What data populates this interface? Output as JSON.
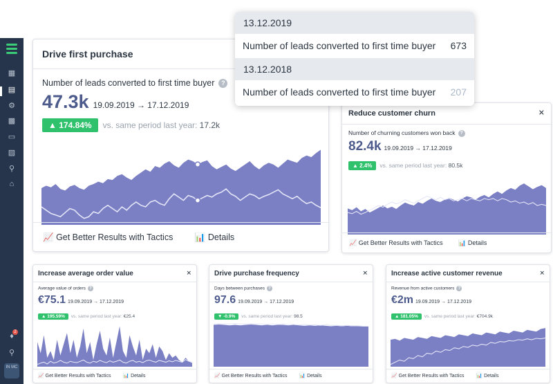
{
  "colors": {
    "accent": "#7b7fc4",
    "positive": "#2fc16b",
    "negative": "#2fc16b",
    "sidebar": "#26354c"
  },
  "sidebar": {
    "icons": [
      "logo-icon",
      "contacts-icon",
      "analytics-icon",
      "settings-icon",
      "campaigns-icon",
      "messages-icon",
      "segments-icon",
      "integrations-icon",
      "automation-icon",
      "bell-icon",
      "search-icon"
    ],
    "notification_count": "2",
    "avatar_initials": "IN MC"
  },
  "tooltip": {
    "rows": [
      {
        "date": "13.12.2019",
        "label": "Number of leads converted to first time buyer",
        "value": "673"
      },
      {
        "date": "13.12.2018",
        "label": "Number of leads converted to first time buyer",
        "value": "207"
      }
    ]
  },
  "footer": {
    "tactics": "Get Better Results with Tactics",
    "details": "Details"
  },
  "cards": {
    "main": {
      "title": "Drive first purchase",
      "metric": "Number of leads converted to first time buyer",
      "value": "47.3k",
      "range": "19.09.2019 → 17.12.2019",
      "pct": "174.84%",
      "cmp_label": "vs. same period last year:",
      "cmp_value": "17.2k",
      "chart": {
        "current": [
          0.45,
          0.48,
          0.46,
          0.5,
          0.44,
          0.42,
          0.47,
          0.49,
          0.45,
          0.43,
          0.48,
          0.5,
          0.53,
          0.51,
          0.56,
          0.55,
          0.6,
          0.62,
          0.58,
          0.55,
          0.6,
          0.64,
          0.68,
          0.65,
          0.72,
          0.7,
          0.75,
          0.78,
          0.73,
          0.7,
          0.76,
          0.8,
          0.78,
          0.74,
          0.77,
          0.79,
          0.72,
          0.68,
          0.71,
          0.74,
          0.69,
          0.66,
          0.7,
          0.74,
          0.78,
          0.72,
          0.68,
          0.73,
          0.76,
          0.74,
          0.7,
          0.75,
          0.8,
          0.78,
          0.76,
          0.82,
          0.85,
          0.83,
          0.88,
          0.92
        ],
        "previous": [
          0.22,
          0.18,
          0.14,
          0.12,
          0.1,
          0.15,
          0.2,
          0.18,
          0.12,
          0.08,
          0.1,
          0.16,
          0.14,
          0.2,
          0.24,
          0.2,
          0.16,
          0.22,
          0.18,
          0.24,
          0.28,
          0.24,
          0.22,
          0.28,
          0.3,
          0.26,
          0.24,
          0.32,
          0.38,
          0.34,
          0.3,
          0.36,
          0.34,
          0.3,
          0.33,
          0.36,
          0.34,
          0.38,
          0.4,
          0.44,
          0.38,
          0.35,
          0.3,
          0.34,
          0.38,
          0.36,
          0.32,
          0.35,
          0.37,
          0.4,
          0.43,
          0.38,
          0.35,
          0.32,
          0.35,
          0.3,
          0.26,
          0.28,
          0.24,
          0.21
        ]
      }
    },
    "churn": {
      "title": "Reduce customer churn",
      "metric": "Number of churning customers won back",
      "value": "82.4k",
      "range": "19.09.2019 → 17.12.2019",
      "pct": "2.4%",
      "cmp_label": "vs. same period last year:",
      "cmp_value": "80.5k",
      "chart": {
        "current": [
          0.45,
          0.42,
          0.47,
          0.4,
          0.44,
          0.38,
          0.42,
          0.46,
          0.5,
          0.45,
          0.48,
          0.44,
          0.5,
          0.55,
          0.52,
          0.5,
          0.56,
          0.53,
          0.58,
          0.62,
          0.58,
          0.56,
          0.6,
          0.63,
          0.6,
          0.57,
          0.62,
          0.66,
          0.64,
          0.6,
          0.65,
          0.68,
          0.64,
          0.7,
          0.74,
          0.7,
          0.76,
          0.8,
          0.77,
          0.84,
          0.88,
          0.83,
          0.78,
          0.82,
          0.85,
          0.8
        ],
        "previous": [
          0.38,
          0.36,
          0.4,
          0.35,
          0.38,
          0.42,
          0.46,
          0.5,
          0.47,
          0.52,
          0.56,
          0.53,
          0.55,
          0.6,
          0.57,
          0.54,
          0.58,
          0.62,
          0.66,
          0.63,
          0.6,
          0.64,
          0.6,
          0.62,
          0.58,
          0.6,
          0.62,
          0.58,
          0.62,
          0.6,
          0.58,
          0.62,
          0.6,
          0.62,
          0.58,
          0.62,
          0.6,
          0.56,
          0.58,
          0.54,
          0.56,
          0.52,
          0.55,
          0.5,
          0.52,
          0.5
        ]
      }
    },
    "aov": {
      "title": "Increase average order value",
      "metric": "Average value of orders",
      "value": "€75.1",
      "range": "19.09.2019 → 17.12.2019",
      "pct": "195.59%",
      "cmp_label": "vs. same period last year:",
      "cmp_value": "€25.4",
      "chart": {
        "current": [
          0.55,
          0.3,
          0.7,
          0.2,
          0.35,
          0.15,
          0.6,
          0.25,
          0.5,
          0.75,
          0.3,
          0.6,
          0.2,
          0.45,
          0.85,
          0.3,
          0.55,
          0.15,
          0.5,
          0.8,
          0.4,
          0.25,
          0.65,
          0.2,
          0.55,
          0.9,
          0.35,
          0.2,
          0.7,
          0.45,
          0.25,
          0.6,
          0.15,
          0.4,
          0.3,
          0.5,
          0.2,
          0.45,
          0.35,
          0.15,
          0.3,
          0.2,
          0.25,
          0.15,
          0.1,
          0.2,
          0.12,
          0.08
        ],
        "previous": [
          0.05,
          0.08,
          0.1,
          0.06,
          0.12,
          0.08,
          0.1,
          0.14,
          0.1,
          0.08,
          0.12,
          0.1,
          0.09,
          0.12,
          0.15,
          0.1,
          0.08,
          0.12,
          0.1,
          0.14,
          0.11,
          0.09,
          0.13,
          0.1,
          0.12,
          0.15,
          0.1,
          0.08,
          0.12,
          0.14,
          0.1,
          0.12,
          0.09,
          0.13,
          0.15,
          0.12,
          0.1,
          0.14,
          0.12,
          0.1,
          0.13,
          0.11,
          0.14,
          0.12,
          0.1,
          0.16,
          0.12,
          0.1
        ]
      }
    },
    "freq": {
      "title": "Drive purchase frequency",
      "metric": "Days between purchases",
      "value": "97.6",
      "range": "19.09.2019 → 17.12.2019",
      "pct": "-0.9%",
      "cmp_label": "vs. same period last year:",
      "cmp_value": "98.5",
      "chart": {
        "current": [
          0.93,
          0.94,
          0.93,
          0.92,
          0.93,
          0.92,
          0.93,
          0.94,
          0.93,
          0.92,
          0.93,
          0.92,
          0.93,
          0.93,
          0.92,
          0.93,
          0.92,
          0.91,
          0.92,
          0.91,
          0.92,
          0.91,
          0.9,
          0.91,
          0.9,
          0.91,
          0.9,
          0.91,
          0.9,
          0.89
        ],
        "previous": [
          0.95,
          0.96,
          0.95,
          0.95,
          0.96,
          0.95,
          0.95,
          0.96,
          0.95,
          0.95,
          0.94,
          0.95,
          0.94,
          0.95,
          0.94,
          0.94,
          0.93,
          0.94,
          0.93,
          0.93,
          0.92,
          0.93,
          0.92,
          0.92,
          0.91,
          0.92,
          0.91,
          0.91,
          0.9,
          0.9
        ]
      }
    },
    "rev": {
      "title": "Increase active customer revenue",
      "metric": "Revenue from active customers",
      "value": "€2m",
      "range": "19.09.2019 → 17.12.2019",
      "pct": "181.05%",
      "cmp_label": "vs. same period last year:",
      "cmp_value": "€704.9k",
      "chart": {
        "current": [
          0.6,
          0.62,
          0.58,
          0.64,
          0.62,
          0.6,
          0.66,
          0.64,
          0.62,
          0.68,
          0.66,
          0.64,
          0.7,
          0.68,
          0.66,
          0.72,
          0.7,
          0.68,
          0.74,
          0.72,
          0.7,
          0.76,
          0.74,
          0.72,
          0.78,
          0.76,
          0.74,
          0.8,
          0.78,
          0.76,
          0.82,
          0.8,
          0.78,
          0.84,
          0.86
        ],
        "previous": [
          0.05,
          0.1,
          0.15,
          0.12,
          0.2,
          0.18,
          0.25,
          0.22,
          0.3,
          0.28,
          0.35,
          0.32,
          0.38,
          0.36,
          0.42,
          0.4,
          0.45,
          0.43,
          0.48,
          0.46,
          0.5,
          0.48,
          0.54,
          0.52,
          0.56,
          0.55,
          0.58,
          0.57,
          0.6,
          0.59,
          0.62,
          0.6,
          0.63,
          0.62,
          0.64
        ]
      }
    }
  }
}
